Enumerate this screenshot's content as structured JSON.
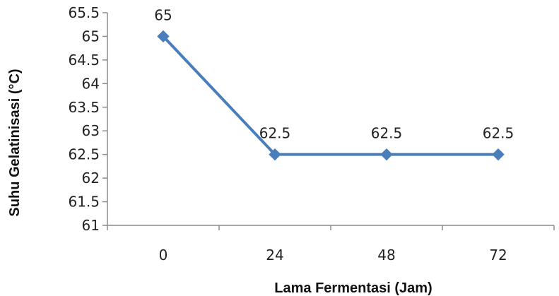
{
  "chart_data": {
    "type": "line",
    "title": "",
    "xlabel": "Lama Fermentasi (Jam)",
    "ylabel": "Suhu Gelatinisasi (°C)",
    "categories": [
      "0",
      "24",
      "48",
      "72"
    ],
    "series": [
      {
        "values": [
          65,
          62.5,
          62.5,
          62.5
        ]
      }
    ],
    "data_labels": [
      "65",
      "62.5",
      "62.5",
      "62.5"
    ],
    "y_ticks": [
      "61",
      "61.5",
      "62",
      "62.5",
      "63",
      "63.5",
      "64",
      "64.5",
      "65",
      "65.5"
    ],
    "ylim": [
      61,
      65.5
    ],
    "grid": false,
    "legend": "none",
    "color": "#4a7ebb"
  }
}
